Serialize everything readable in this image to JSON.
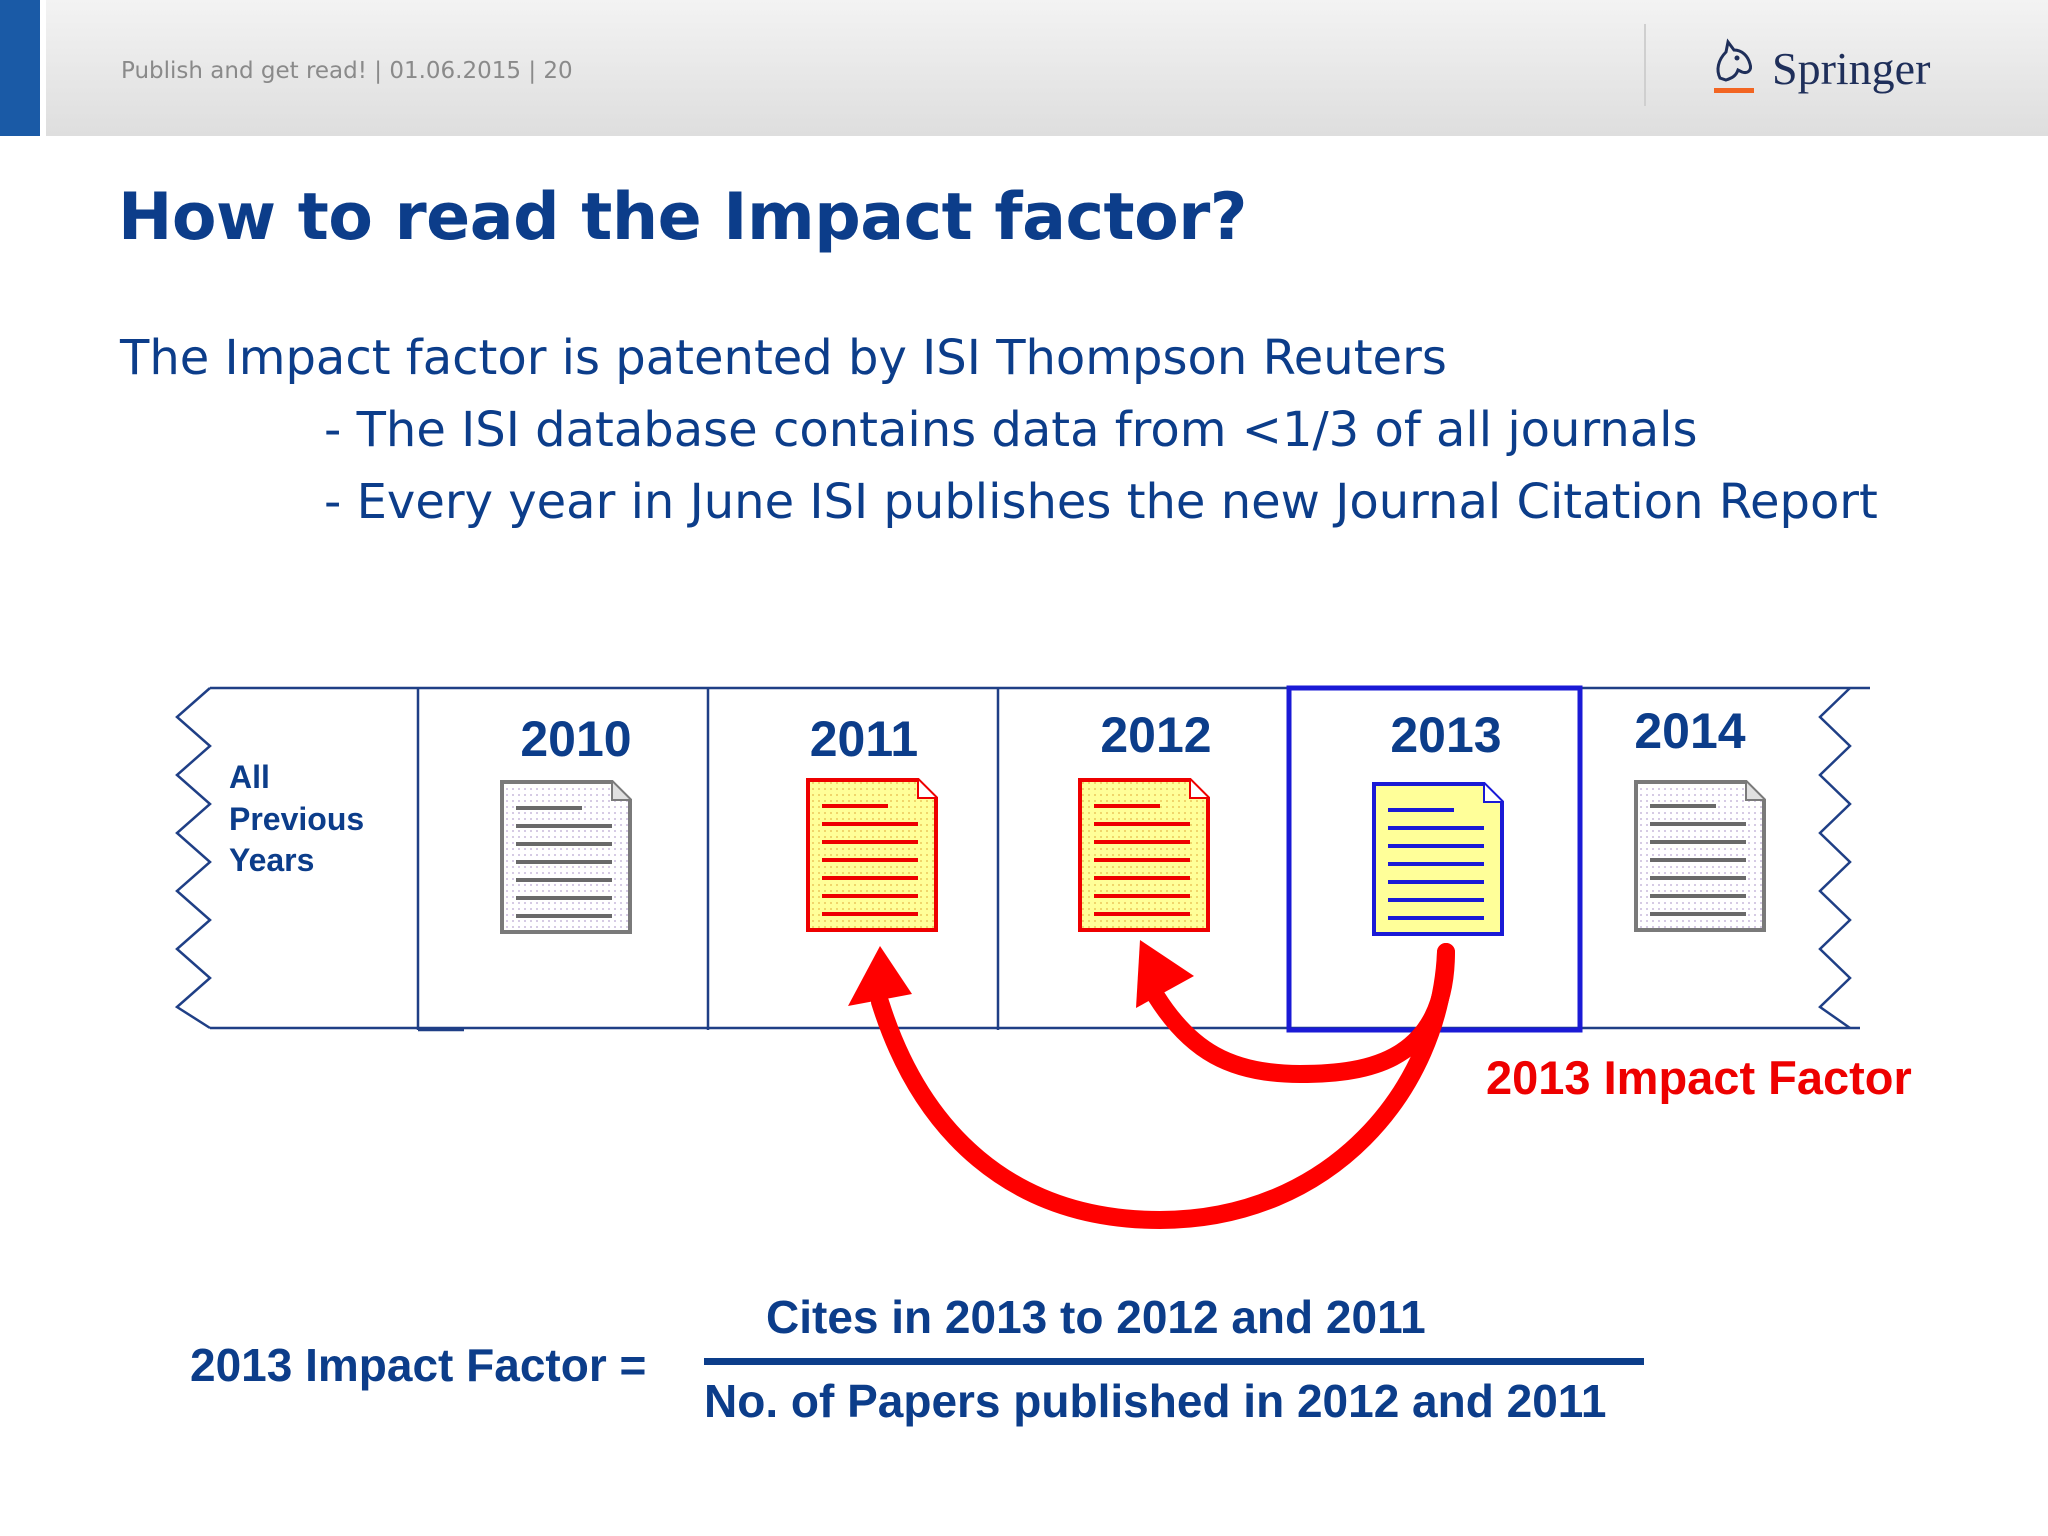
{
  "header": {
    "meta": "Publish and get read! | 01.06.2015 | 20",
    "brand": "Springer"
  },
  "title": "How to read the Impact factor?",
  "body": {
    "line1": "The Impact factor is patented by ISI Thompson Reuters",
    "line2": "- The ISI database contains data from <1/3 of all journals",
    "line3": "- Every year in June ISI publishes the new Journal Citation Report"
  },
  "timeline": {
    "previous_line1": "All",
    "previous_line2": "Previous",
    "previous_line3": "Years",
    "years": [
      "2010",
      "2011",
      "2012",
      "2013",
      "2014"
    ],
    "highlight_label": "2013 Impact Factor"
  },
  "formula": {
    "label": "2013 Impact Factor =",
    "numerator": "Cites in 2013 to 2012 and 2011",
    "denominator": "No. of Papers published in 2012 and 2011"
  },
  "colors": {
    "brand_blue": "#0c3d8a",
    "accent_blue": "#1a5aa6",
    "highlight_blue": "#1a1ad6",
    "citation_red": "#ff0000",
    "doc_yellow": "#ffff99"
  }
}
